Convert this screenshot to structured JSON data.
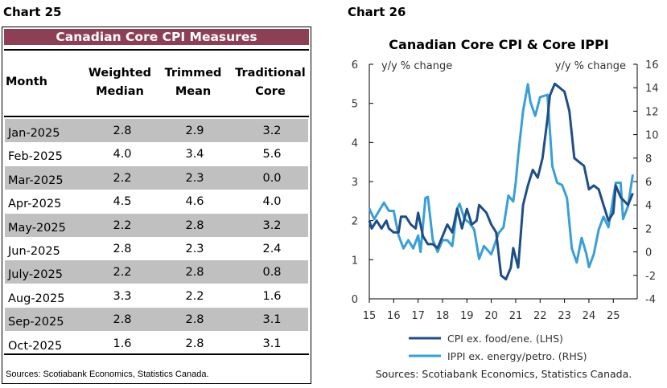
{
  "left": {
    "chart_label": "Chart 25",
    "title": "Canadian Core CPI Measures",
    "headers": {
      "month": "Month",
      "wm": [
        "Weighted",
        "Median"
      ],
      "tm": [
        "Trimmed",
        "Mean"
      ],
      "tc": [
        "Traditional",
        "Core"
      ]
    },
    "rows": [
      [
        "Jan-2025",
        "2.8",
        "2.9",
        "3.2"
      ],
      [
        "Feb-2025",
        "4.0",
        "3.4",
        "5.6"
      ],
      [
        "Mar-2025",
        "2.2",
        "2.3",
        "0.0"
      ],
      [
        "Apr-2025",
        "4.5",
        "4.6",
        "4.0"
      ],
      [
        "May-2025",
        "2.2",
        "2.8",
        "3.2"
      ],
      [
        "Jun-2025",
        "2.8",
        "2.3",
        "2.4"
      ],
      [
        "July-2025",
        "2.2",
        "2.8",
        "0.8"
      ],
      [
        "Aug-2025",
        "3.3",
        "2.2",
        "1.6"
      ],
      [
        "Sep-2025",
        "2.8",
        "2.8",
        "3.1"
      ],
      [
        "Oct-2025",
        "1.6",
        "2.8",
        "3.1"
      ]
    ],
    "source": "Sources: Scotiabank Economics, Statistics Canada.",
    "title_color": "#8c3f55",
    "stripe_color": "#c0c0c0"
  },
  "right": {
    "chart_label": "Chart 26",
    "source": "Sources: Scotiabank Economics, Statistics Canada."
  },
  "chart_data": {
    "type": "line",
    "title": "Canadian Core CPI & Core IPPI",
    "ylabel_left": "y/y % change",
    "ylabel_right": "y/y % change",
    "ylim_left": [
      0,
      6
    ],
    "ylim_right": [
      -4,
      16
    ],
    "yticks_left": [
      "0",
      "1",
      "2",
      "3",
      "4",
      "5",
      "6"
    ],
    "yticks_right": [
      "-4",
      "-2",
      "0",
      "2",
      "4",
      "6",
      "8",
      "10",
      "12",
      "14",
      "16"
    ],
    "xlim": [
      15,
      26
    ],
    "xticks": [
      "15",
      "16",
      "17",
      "18",
      "19",
      "20",
      "21",
      "22",
      "23",
      "24",
      "25"
    ],
    "grid": false,
    "legend_position": "bottom",
    "series": [
      {
        "name": "CPI ex. food/ene. (LHS)",
        "axis": "left",
        "color": "#1f4e87",
        "x": [
          15.0,
          15.1,
          15.3,
          15.5,
          15.7,
          15.8,
          16.0,
          16.2,
          16.3,
          16.5,
          16.7,
          16.9,
          17.0,
          17.2,
          17.4,
          17.6,
          17.8,
          18.0,
          18.2,
          18.4,
          18.6,
          18.8,
          19.0,
          19.2,
          19.4,
          19.5,
          19.8,
          20.0,
          20.2,
          20.4,
          20.6,
          20.8,
          20.9,
          21.1,
          21.3,
          21.5,
          21.7,
          21.9,
          22.1,
          22.3,
          22.4,
          22.6,
          22.8,
          23.0,
          23.2,
          23.4,
          23.6,
          23.8,
          24.0,
          24.2,
          24.4,
          24.6,
          24.8,
          25.0,
          25.1,
          25.3,
          25.6,
          25.8
        ],
        "y": [
          2.0,
          1.8,
          2.0,
          1.8,
          2.0,
          1.8,
          1.7,
          1.7,
          2.1,
          2.1,
          1.9,
          1.8,
          2.2,
          1.6,
          1.4,
          1.4,
          1.3,
          1.6,
          1.9,
          1.7,
          2.3,
          1.8,
          2.3,
          1.9,
          2.0,
          2.4,
          2.2,
          1.9,
          1.7,
          0.6,
          0.5,
          0.8,
          1.3,
          0.8,
          2.4,
          2.9,
          3.3,
          3.1,
          3.6,
          4.6,
          5.2,
          5.5,
          5.4,
          5.3,
          4.8,
          3.6,
          3.5,
          3.4,
          2.8,
          2.9,
          2.8,
          2.4,
          2.0,
          2.2,
          2.9,
          2.6,
          2.4,
          2.7
        ]
      },
      {
        "name": "IPPI ex. energy/petro. (RHS)",
        "axis": "right",
        "color": "#3a9fd6",
        "x": [
          15.0,
          15.2,
          15.4,
          15.6,
          15.8,
          16.0,
          16.2,
          16.4,
          16.6,
          16.8,
          17.0,
          17.1,
          17.3,
          17.4,
          17.6,
          17.8,
          18.0,
          18.2,
          18.4,
          18.6,
          18.7,
          18.9,
          19.1,
          19.3,
          19.5,
          19.7,
          20.0,
          20.3,
          20.5,
          20.7,
          20.9,
          21.0,
          21.1,
          21.3,
          21.5,
          21.6,
          21.8,
          22.0,
          22.3,
          22.5,
          22.7,
          22.9,
          23.1,
          23.3,
          23.5,
          23.7,
          23.9,
          24.0,
          24.2,
          24.4,
          24.6,
          24.8,
          25.1,
          25.3,
          25.4,
          25.6,
          25.8
        ],
        "y": [
          3.7,
          2.8,
          3.5,
          4.2,
          3.5,
          3.5,
          1.4,
          0.3,
          1.0,
          0.3,
          1.4,
          0.0,
          4.6,
          4.7,
          1.0,
          0.0,
          1.0,
          1.0,
          0.5,
          3.7,
          4.1,
          2.8,
          2.5,
          1.9,
          -0.6,
          0.5,
          -0.2,
          1.6,
          2.1,
          4.8,
          4.3,
          5.9,
          8.2,
          12.0,
          14.3,
          12.8,
          11.6,
          13.2,
          13.4,
          7.3,
          5.9,
          5.7,
          4.6,
          0.3,
          -0.9,
          1.2,
          -0.2,
          -1.3,
          -0.2,
          1.9,
          3.0,
          2.1,
          5.9,
          5.9,
          2.8,
          3.9,
          6.6
        ]
      }
    ]
  }
}
